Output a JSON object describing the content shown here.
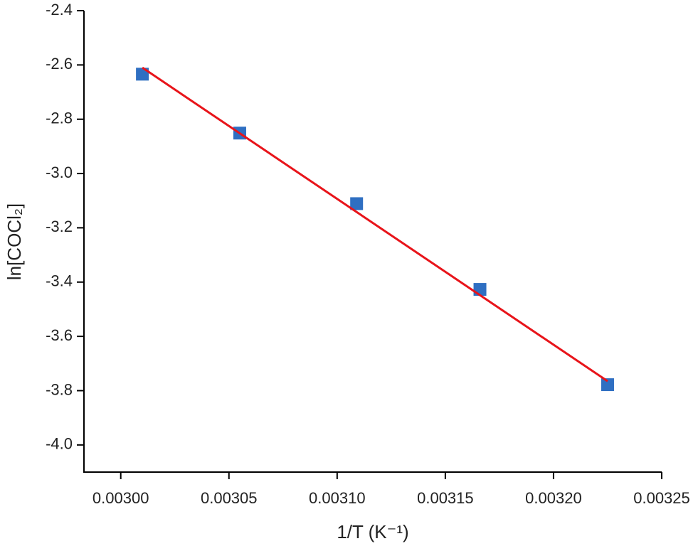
{
  "chart_data": {
    "type": "scatter",
    "x_label": "1/T (K⁻¹)",
    "y_label": "ln[COCl₂]",
    "xlim": [
      0.002983,
      0.00325
    ],
    "ylim": [
      -4.1,
      -2.4
    ],
    "xticks": [
      {
        "value": 0.003,
        "label": "0.00300"
      },
      {
        "value": 0.00305,
        "label": "0.00305"
      },
      {
        "value": 0.0031,
        "label": "0.00310"
      },
      {
        "value": 0.00315,
        "label": "0.00315"
      },
      {
        "value": 0.0032,
        "label": "0.00320"
      },
      {
        "value": 0.00325,
        "label": "0.00325"
      }
    ],
    "yticks": [
      -2.4,
      -2.6,
      -2.8,
      {
        "value": -3,
        "label": "-3.0"
      },
      -3.2,
      -3.4,
      -3.6,
      -3.8,
      {
        "value": -4,
        "label": "-4.0"
      }
    ],
    "series": [
      {
        "type": "scatter",
        "color": "#2f6fc2",
        "x": [
          0.00301,
          0.003055,
          0.003109,
          0.003166,
          0.003225
        ],
        "values": [
          -2.634,
          -2.851,
          -3.111,
          -3.427,
          -3.778
        ]
      },
      {
        "type": "line",
        "color": "#e8141a",
        "x": [
          0.00301,
          0.003225
        ],
        "values": [
          -2.61,
          -3.765
        ]
      }
    ]
  }
}
